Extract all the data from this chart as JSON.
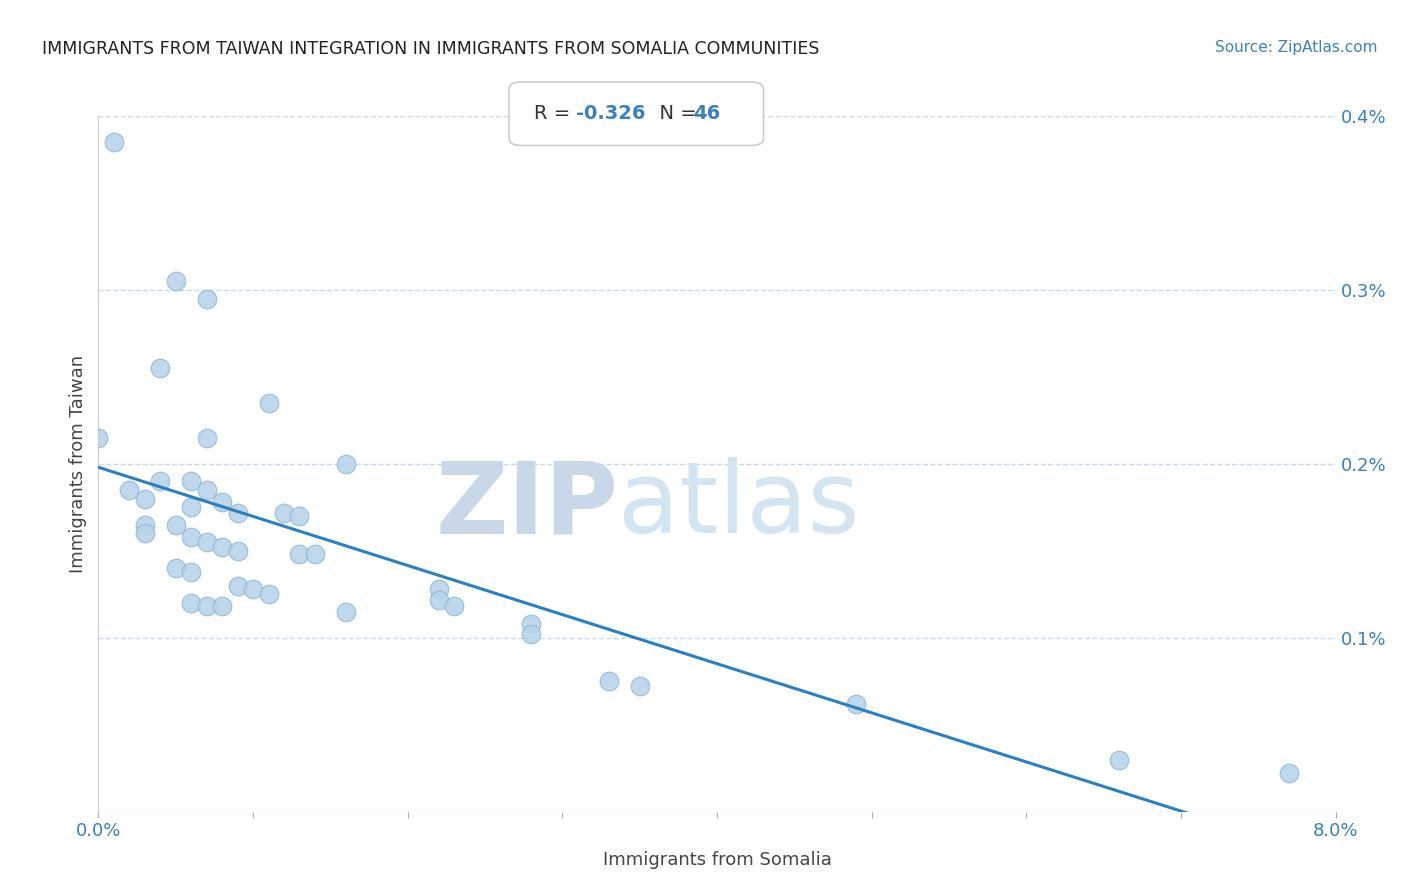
{
  "title": "IMMIGRANTS FROM TAIWAN INTEGRATION IN IMMIGRANTS FROM SOMALIA COMMUNITIES",
  "source": "Source: ZipAtlas.com",
  "xlabel": "Immigrants from Somalia",
  "ylabel": "Immigrants from Taiwan",
  "R": -0.326,
  "N": 46,
  "xlim": [
    0.0,
    0.08
  ],
  "ylim": [
    0.0,
    0.004
  ],
  "xticks": [
    0.0,
    0.01,
    0.02,
    0.03,
    0.04,
    0.05,
    0.06,
    0.07,
    0.08
  ],
  "xticklabels": [
    "0.0%",
    "",
    "",
    "",
    "",
    "",
    "",
    "",
    "8.0%"
  ],
  "yticks": [
    0.0,
    0.001,
    0.002,
    0.003,
    0.004
  ],
  "yticklabels": [
    "",
    "0.1%",
    "0.2%",
    "0.3%",
    "0.4%"
  ],
  "scatter_color": "#b8d4ea",
  "scatter_edge_color": "#90b8d8",
  "line_color": "#2b7fc3",
  "background_color": "#ffffff",
  "grid_color": "#c8d8ea",
  "watermark_zip": "ZIP",
  "watermark_atlas": "atlas",
  "watermark_color": "#dce8f0",
  "points": [
    [
      0.001,
      0.00385
    ],
    [
      0.005,
      0.00305
    ],
    [
      0.007,
      0.00295
    ],
    [
      0.004,
      0.00255
    ],
    [
      0.011,
      0.00235
    ],
    [
      0.0,
      0.00215
    ],
    [
      0.007,
      0.00215
    ],
    [
      0.016,
      0.002
    ],
    [
      0.004,
      0.0019
    ],
    [
      0.006,
      0.0019
    ],
    [
      0.007,
      0.00185
    ],
    [
      0.002,
      0.00185
    ],
    [
      0.003,
      0.0018
    ],
    [
      0.008,
      0.00178
    ],
    [
      0.006,
      0.00175
    ],
    [
      0.009,
      0.00172
    ],
    [
      0.012,
      0.00172
    ],
    [
      0.013,
      0.0017
    ],
    [
      0.003,
      0.00165
    ],
    [
      0.005,
      0.00165
    ],
    [
      0.003,
      0.0016
    ],
    [
      0.006,
      0.00158
    ],
    [
      0.007,
      0.00155
    ],
    [
      0.008,
      0.00152
    ],
    [
      0.009,
      0.0015
    ],
    [
      0.013,
      0.00148
    ],
    [
      0.014,
      0.00148
    ],
    [
      0.005,
      0.0014
    ],
    [
      0.006,
      0.00138
    ],
    [
      0.009,
      0.0013
    ],
    [
      0.01,
      0.00128
    ],
    [
      0.011,
      0.00125
    ],
    [
      0.006,
      0.0012
    ],
    [
      0.007,
      0.00118
    ],
    [
      0.008,
      0.00118
    ],
    [
      0.016,
      0.00115
    ],
    [
      0.022,
      0.00128
    ],
    [
      0.022,
      0.00122
    ],
    [
      0.023,
      0.00118
    ],
    [
      0.028,
      0.00108
    ],
    [
      0.028,
      0.00102
    ],
    [
      0.033,
      0.00075
    ],
    [
      0.035,
      0.00072
    ],
    [
      0.049,
      0.00062
    ],
    [
      0.066,
      0.0003
    ],
    [
      0.077,
      0.00022
    ]
  ]
}
